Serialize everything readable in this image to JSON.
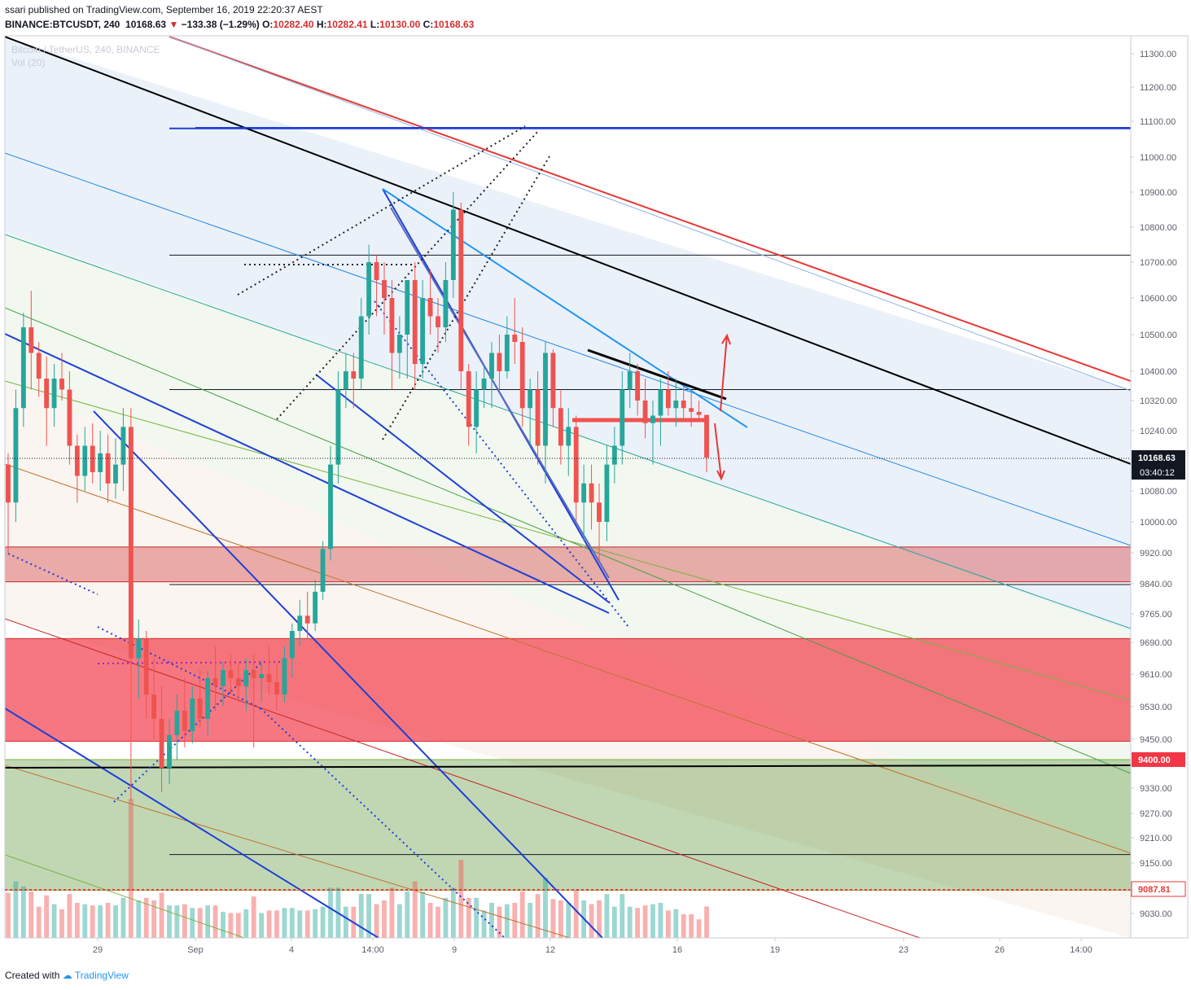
{
  "header": {
    "published": "ssari published on TradingView.com, September 16, 2019 22:20:37 AEST",
    "symbol": "BINANCE:BTCUSDT, 240",
    "last": "10168.63",
    "change": "−133.38 (−1.29%)",
    "o_label": "O:",
    "o_value": "10282.40",
    "h_label": "H:",
    "h_value": "10282.41",
    "l_label": "L:",
    "l_value": "10130.00",
    "c_label": "C:",
    "c_value": "10168.63",
    "ghost_title": "Bitcoin / TetherUS, 240, BINANCE",
    "ghost_vol": "Vol (20)"
  },
  "footer": {
    "created_with": "Created with",
    "brand": "TradingView"
  },
  "colors": {
    "up": "#26a69a",
    "down": "#ef5350",
    "red_zone": "#f23645",
    "green_zone": "#4caf50",
    "channel_blue": "#1e54d6",
    "trend_red": "#e53935",
    "axis_text": "#5d606b"
  },
  "chart_data": {
    "type": "candlestick",
    "symbol": "BINANCE:BTCUSDT",
    "timeframe": "240",
    "last_price": 10168.63,
    "countdown": "03:40:12",
    "y_ticks": [
      "11300.00",
      "11200.00",
      "11100.00",
      "11000.00",
      "10900.00",
      "10800.00",
      "10700.00",
      "10600.00",
      "10500.00",
      "10400.00",
      "10320.00",
      "10240.00",
      "10080.00",
      "10000.00",
      "9920.00",
      "9840.00",
      "9765.00",
      "9690.00",
      "9610.00",
      "9530.00",
      "9450.00",
      "9330.00",
      "9270.00",
      "9210.00",
      "9150.00",
      "9030.00"
    ],
    "y_tick_values": [
      11300,
      11200,
      11100,
      11000,
      10900,
      10800,
      10700,
      10600,
      10500,
      10400,
      10320,
      10240,
      10080,
      10000,
      9920,
      9840,
      9765,
      9690,
      9610,
      9530,
      9450,
      9330,
      9270,
      9210,
      9150,
      9030
    ],
    "highlight_levels": [
      {
        "label": "10168.63",
        "value": 10168.63
      },
      {
        "label": "9400.00",
        "value": 9400
      },
      {
        "label": "9087.81",
        "value": 9087.81
      }
    ],
    "x_ticks": [
      "29",
      "Sep",
      "4",
      "14:00",
      "9",
      "12",
      "16",
      "19",
      "23",
      "26",
      "14:00"
    ],
    "zones": [
      {
        "from": 9845,
        "to": 9935,
        "color": "red-light"
      },
      {
        "from": 9445,
        "to": 9700,
        "color": "red"
      },
      {
        "from": 9085,
        "to": 9400,
        "color": "green"
      }
    ],
    "horizontal_levels": [
      11080,
      10720,
      10350,
      9838,
      9170
    ],
    "candles": [
      [
        10150,
        10180,
        9920,
        10050
      ],
      [
        10050,
        10350,
        10000,
        10300
      ],
      [
        10300,
        10560,
        10250,
        10520
      ],
      [
        10520,
        10620,
        10350,
        10450
      ],
      [
        10450,
        10480,
        10330,
        10380
      ],
      [
        10380,
        10440,
        10200,
        10300
      ],
      [
        10300,
        10420,
        10250,
        10380
      ],
      [
        10380,
        10450,
        10320,
        10350
      ],
      [
        10350,
        10400,
        10150,
        10200
      ],
      [
        10200,
        10230,
        10050,
        10120
      ],
      [
        10120,
        10250,
        10080,
        10200
      ],
      [
        10200,
        10260,
        10100,
        10130
      ],
      [
        10130,
        10240,
        10080,
        10180
      ],
      [
        10180,
        10230,
        10050,
        10100
      ],
      [
        10100,
        10220,
        10060,
        10150
      ],
      [
        10150,
        10300,
        10080,
        10250
      ],
      [
        10250,
        10300,
        9300,
        9650
      ],
      [
        9650,
        9750,
        9550,
        9700
      ],
      [
        9700,
        9720,
        9500,
        9560
      ],
      [
        9560,
        9650,
        9450,
        9500
      ],
      [
        9500,
        9580,
        9320,
        9380
      ],
      [
        9380,
        9500,
        9340,
        9460
      ],
      [
        9460,
        9560,
        9400,
        9520
      ],
      [
        9520,
        9600,
        9430,
        9470
      ],
      [
        9470,
        9580,
        9440,
        9550
      ],
      [
        9550,
        9620,
        9480,
        9500
      ],
      [
        9500,
        9620,
        9460,
        9600
      ],
      [
        9600,
        9680,
        9520,
        9580
      ],
      [
        9580,
        9640,
        9530,
        9620
      ],
      [
        9620,
        9660,
        9560,
        9600
      ],
      [
        9600,
        9640,
        9540,
        9580
      ],
      [
        9580,
        9650,
        9520,
        9620
      ],
      [
        9620,
        9660,
        9430,
        9600
      ],
      [
        9600,
        9640,
        9540,
        9610
      ],
      [
        9610,
        9680,
        9560,
        9590
      ],
      [
        9590,
        9640,
        9520,
        9560
      ],
      [
        9560,
        9680,
        9540,
        9650
      ],
      [
        9650,
        9740,
        9600,
        9720
      ],
      [
        9720,
        9800,
        9680,
        9760
      ],
      [
        9760,
        9820,
        9700,
        9740
      ],
      [
        9740,
        9850,
        9720,
        9820
      ],
      [
        9820,
        9950,
        9800,
        9930
      ],
      [
        9930,
        10200,
        9900,
        10150
      ],
      [
        10150,
        10400,
        10100,
        10350
      ],
      [
        10350,
        10450,
        10300,
        10400
      ],
      [
        10400,
        10450,
        10300,
        10380
      ],
      [
        10380,
        10600,
        10350,
        10550
      ],
      [
        10550,
        10750,
        10500,
        10700
      ],
      [
        10700,
        10720,
        10550,
        10650
      ],
      [
        10650,
        10700,
        10500,
        10600
      ],
      [
        10600,
        10650,
        10350,
        10450
      ],
      [
        10450,
        10550,
        10380,
        10500
      ],
      [
        10500,
        10650,
        10380,
        10650
      ],
      [
        10650,
        10700,
        10350,
        10420
      ],
      [
        10420,
        10650,
        10380,
        10600
      ],
      [
        10600,
        10680,
        10500,
        10550
      ],
      [
        10550,
        10600,
        10450,
        10520
      ],
      [
        10520,
        10700,
        10480,
        10650
      ],
      [
        10650,
        10900,
        10600,
        10850
      ],
      [
        10850,
        10870,
        10350,
        10400
      ],
      [
        10400,
        10420,
        10200,
        10250
      ],
      [
        10250,
        10400,
        10180,
        10350
      ],
      [
        10350,
        10420,
        10300,
        10380
      ],
      [
        10380,
        10480,
        10300,
        10450
      ],
      [
        10450,
        10500,
        10350,
        10400
      ],
      [
        10400,
        10550,
        10380,
        10500
      ],
      [
        10500,
        10600,
        10420,
        10480
      ],
      [
        10480,
        10520,
        10250,
        10300
      ],
      [
        10300,
        10380,
        10200,
        10350
      ],
      [
        10350,
        10400,
        10150,
        10200
      ],
      [
        10200,
        10480,
        10100,
        10450
      ],
      [
        10450,
        10460,
        10250,
        10300
      ],
      [
        10300,
        10350,
        10150,
        10200
      ],
      [
        10200,
        10300,
        10120,
        10250
      ],
      [
        10250,
        10280,
        10000,
        10050
      ],
      [
        10050,
        10150,
        9950,
        10100
      ],
      [
        10100,
        10150,
        9980,
        10050
      ],
      [
        10050,
        10100,
        9900,
        10000
      ],
      [
        10000,
        10200,
        9950,
        10150
      ],
      [
        10150,
        10250,
        10100,
        10200
      ],
      [
        10200,
        10400,
        10150,
        10350
      ],
      [
        10350,
        10450,
        10300,
        10400
      ],
      [
        10400,
        10420,
        10280,
        10320
      ],
      [
        10320,
        10380,
        10220,
        10260
      ],
      [
        10260,
        10320,
        10150,
        10280
      ],
      [
        10280,
        10380,
        10200,
        10350
      ],
      [
        10350,
        10400,
        10280,
        10300
      ],
      [
        10300,
        10380,
        10250,
        10320
      ],
      [
        10320,
        10360,
        10270,
        10300
      ],
      [
        10300,
        10340,
        10250,
        10290
      ],
      [
        10290,
        10320,
        10270,
        10282
      ],
      [
        10282,
        10282,
        10130,
        10168.63
      ]
    ]
  }
}
